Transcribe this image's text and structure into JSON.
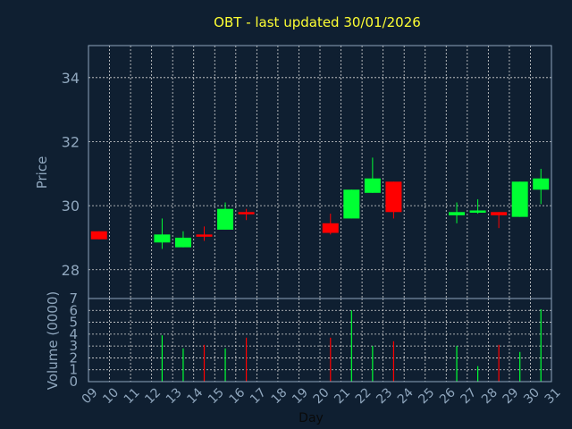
{
  "chart_data": {
    "type": "candlestick",
    "title": "OBT - last updated 30/01/2026",
    "xlabel": "Day",
    "ylabel_price": "Price",
    "ylabel_volume": "Volume (0000)",
    "price_ylim": [
      27.1,
      35
    ],
    "price_ticks": [
      "28",
      "30",
      "32",
      "34"
    ],
    "volume_ylim": [
      0,
      7
    ],
    "volume_ticks": [
      "0",
      "1",
      "2",
      "3",
      "4",
      "5",
      "6",
      "7"
    ],
    "x_ticks": [
      "09",
      "10",
      "11",
      "12",
      "13",
      "14",
      "15",
      "16",
      "17",
      "18",
      "19",
      "20",
      "21",
      "22",
      "23",
      "24",
      "25",
      "26",
      "27",
      "28",
      "29",
      "30",
      "31"
    ],
    "grid": true,
    "colors": {
      "background": "#0f1f31",
      "axis": "#8fa6bd",
      "title": "#ffff33",
      "tick_label": "#8fa6bd",
      "up": "#00ff33",
      "down": "#ff0000"
    },
    "series": [
      {
        "day": 9,
        "open": 29.2,
        "high": 29.2,
        "low": 28.95,
        "close": 28.95,
        "volume": 0.0
      },
      {
        "day": 12,
        "open": 28.85,
        "high": 29.6,
        "low": 28.65,
        "close": 29.1,
        "volume": 3.9
      },
      {
        "day": 13,
        "open": 28.7,
        "high": 29.2,
        "low": 28.7,
        "close": 29.0,
        "volume": 2.8
      },
      {
        "day": 14,
        "open": 29.1,
        "high": 29.35,
        "low": 28.9,
        "close": 29.05,
        "volume": 3.1
      },
      {
        "day": 15,
        "open": 29.25,
        "high": 30.1,
        "low": 29.25,
        "close": 29.9,
        "volume": 2.8
      },
      {
        "day": 16,
        "open": 29.8,
        "high": 29.9,
        "low": 29.55,
        "close": 29.75,
        "volume": 3.7
      },
      {
        "day": 20,
        "open": 29.45,
        "high": 29.75,
        "low": 29.1,
        "close": 29.15,
        "volume": 3.7
      },
      {
        "day": 21,
        "open": 29.6,
        "high": 30.5,
        "low": 29.6,
        "close": 30.5,
        "volume": 6.0
      },
      {
        "day": 22,
        "open": 30.4,
        "high": 31.5,
        "low": 30.4,
        "close": 30.85,
        "volume": 3.0
      },
      {
        "day": 23,
        "open": 30.75,
        "high": 30.75,
        "low": 29.6,
        "close": 29.8,
        "volume": 3.4
      },
      {
        "day": 26,
        "open": 29.7,
        "high": 30.1,
        "low": 29.45,
        "close": 29.8,
        "volume": 3.0
      },
      {
        "day": 27,
        "open": 29.8,
        "high": 30.2,
        "low": 29.75,
        "close": 29.85,
        "volume": 1.3
      },
      {
        "day": 28,
        "open": 29.8,
        "high": 29.8,
        "low": 29.3,
        "close": 29.7,
        "volume": 3.1
      },
      {
        "day": 29,
        "open": 29.65,
        "high": 30.75,
        "low": 29.65,
        "close": 30.75,
        "volume": 2.5
      },
      {
        "day": 30,
        "open": 30.5,
        "high": 31.15,
        "low": 30.05,
        "close": 30.85,
        "volume": 6.1
      }
    ]
  }
}
